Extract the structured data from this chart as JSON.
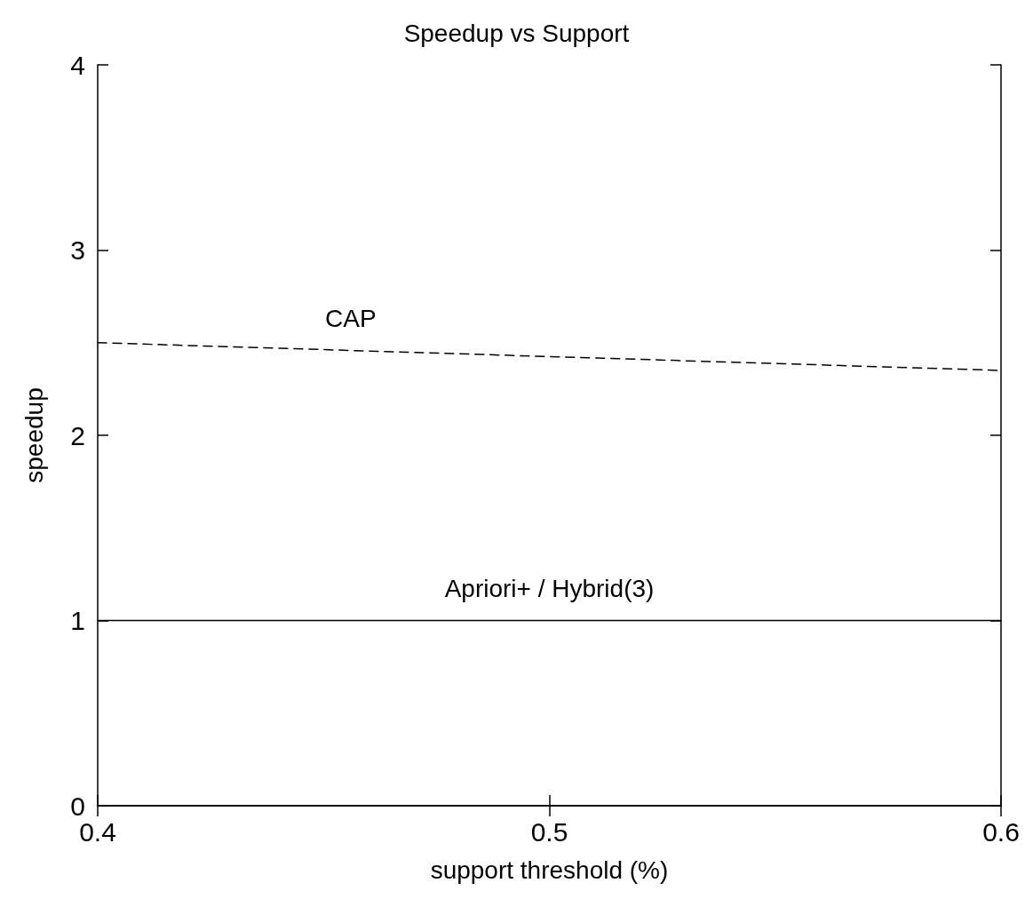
{
  "chart_data": {
    "type": "line",
    "title": "Speedup vs Support",
    "xlabel": "support threshold (%)",
    "ylabel": "speedup",
    "x": [
      0.4,
      0.6
    ],
    "series": [
      {
        "name": "CAP",
        "color": "#000000",
        "line_style": "dashed",
        "values": [
          2.5,
          2.35
        ]
      },
      {
        "name": "Apriori+ / Hybrid(3)",
        "color": "#000000",
        "line_style": "solid",
        "values": [
          1,
          1
        ]
      }
    ],
    "xlim": [
      0.4,
      0.6
    ],
    "xticks": [
      0.4,
      0.5,
      0.6
    ],
    "ylim": [
      0,
      4
    ],
    "yticks": [
      0,
      1,
      2,
      3,
      4
    ],
    "grid": false,
    "legend": false,
    "marker": "none"
  }
}
